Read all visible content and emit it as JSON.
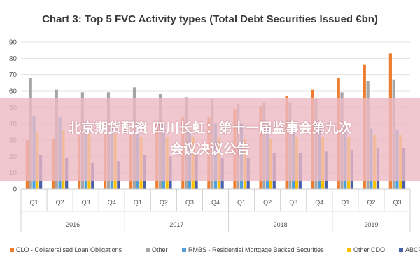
{
  "overlay": {
    "line1": "北京期货配资 四川长虹：第十一届监事会第九次",
    "line2": "会议决议公告"
  },
  "chart_data": {
    "type": "bar",
    "title": "Chart 3: Top 5 FVC Activity types (Total Debt Securities Issued €bn)",
    "xlabel": "",
    "ylabel": "",
    "ylim": [
      0,
      90
    ],
    "yticks": [
      0,
      10,
      20,
      30,
      40,
      50,
      60,
      70,
      80,
      90
    ],
    "grid": true,
    "legend_position": "bottom",
    "categories": [
      "Q1",
      "Q2",
      "Q3",
      "Q4",
      "Q1",
      "Q2",
      "Q3",
      "Q4",
      "Q1",
      "Q2",
      "Q3",
      "Q4",
      "Q1",
      "Q2",
      "Q3"
    ],
    "groups": [
      {
        "label": "2016",
        "count": 4
      },
      {
        "label": "2017",
        "count": 4
      },
      {
        "label": "2018",
        "count": 4
      },
      {
        "label": "2019",
        "count": 3
      }
    ],
    "series": [
      {
        "name": "CLO - Collateralised Loan Obligations",
        "color": "#ed7d31",
        "values": [
          30,
          31,
          33,
          35,
          33,
          40,
          44,
          44,
          49,
          51,
          57,
          61,
          68,
          76,
          83
        ]
      },
      {
        "name": "Other",
        "color": "#a5a5a5",
        "values": [
          68,
          61,
          59,
          59,
          62,
          58,
          56,
          55,
          52,
          53,
          53,
          55,
          59,
          66,
          67
        ]
      },
      {
        "name": "RMBS - Residential Mortgage Backed Securities",
        "color": "#4f9fd9",
        "values": [
          45,
          44,
          41,
          41,
          40,
          40,
          36,
          40,
          40,
          40,
          38,
          38,
          38,
          37,
          36
        ]
      },
      {
        "name": "Other CDO",
        "color": "#ffc000",
        "values": [
          35,
          36,
          34,
          34,
          32,
          32,
          32,
          32,
          31,
          31,
          32,
          32,
          32,
          33,
          33
        ]
      },
      {
        "name": "ABCP",
        "color": "#4a5fa8",
        "values": [
          21,
          19,
          16,
          17,
          21,
          20,
          21,
          19,
          19,
          22,
          22,
          23,
          24,
          25,
          25
        ]
      }
    ]
  }
}
